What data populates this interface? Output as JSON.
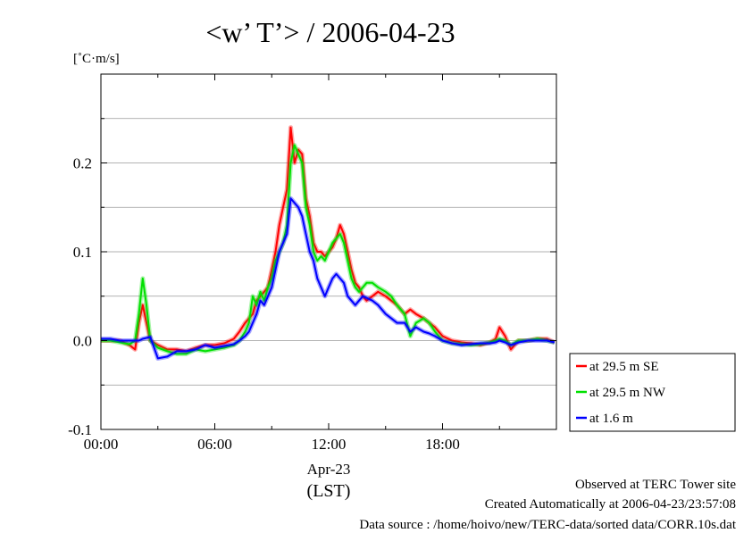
{
  "chart_data": {
    "type": "line",
    "title": "<w’ T’> / 2006-04-23",
    "unit_label": "[˚C·m/s]",
    "xlabel_date": "Apr-23",
    "xlabel": "(LST)",
    "xlim": [
      0,
      24
    ],
    "ylim": [
      -0.1,
      0.3
    ],
    "x_ticks": [
      {
        "value": 0,
        "label": "00:00"
      },
      {
        "value": 6,
        "label": "06:00"
      },
      {
        "value": 12,
        "label": "12:00"
      },
      {
        "value": 18,
        "label": "18:00"
      }
    ],
    "y_ticks": [
      {
        "value": -0.1,
        "label": "-0.1"
      },
      {
        "value": 0.0,
        "label": "0.0"
      },
      {
        "value": 0.1,
        "label": "0.1"
      },
      {
        "value": 0.2,
        "label": "0.2"
      }
    ],
    "grid": true,
    "legend_position": "bottom-right-outside",
    "series": [
      {
        "name": "at 29.5 m SE",
        "color": "#ff0000",
        "x": [
          0.0,
          0.5,
          1.0,
          1.5,
          1.8,
          2.0,
          2.2,
          2.4,
          2.6,
          3.0,
          3.5,
          4.0,
          4.5,
          5.0,
          5.5,
          6.0,
          6.5,
          7.0,
          7.3,
          7.6,
          7.8,
          8.0,
          8.2,
          8.4,
          8.6,
          8.8,
          9.0,
          9.2,
          9.4,
          9.6,
          9.8,
          10.0,
          10.2,
          10.4,
          10.6,
          10.8,
          11.0,
          11.2,
          11.4,
          11.6,
          11.8,
          12.0,
          12.2,
          12.4,
          12.6,
          12.8,
          13.0,
          13.2,
          13.4,
          13.6,
          13.8,
          14.0,
          14.3,
          14.6,
          15.0,
          15.3,
          15.6,
          16.0,
          16.3,
          16.6,
          17.0,
          17.3,
          17.6,
          18.0,
          18.5,
          19.0,
          19.5,
          20.0,
          20.5,
          20.8,
          21.0,
          21.3,
          21.6,
          22.0,
          22.5,
          23.0,
          23.5,
          23.9
        ],
        "values": [
          0.0,
          0.0,
          0.0,
          -0.005,
          -0.01,
          0.02,
          0.04,
          0.02,
          0.0,
          -0.005,
          -0.01,
          -0.01,
          -0.012,
          -0.008,
          -0.005,
          -0.005,
          -0.003,
          0.002,
          0.01,
          0.02,
          0.025,
          0.03,
          0.045,
          0.05,
          0.055,
          0.06,
          0.08,
          0.1,
          0.13,
          0.15,
          0.17,
          0.24,
          0.2,
          0.215,
          0.21,
          0.16,
          0.14,
          0.11,
          0.1,
          0.1,
          0.095,
          0.1,
          0.105,
          0.115,
          0.13,
          0.12,
          0.1,
          0.08,
          0.065,
          0.06,
          0.05,
          0.045,
          0.05,
          0.055,
          0.05,
          0.045,
          0.04,
          0.03,
          0.035,
          0.03,
          0.025,
          0.02,
          0.015,
          0.005,
          0.0,
          -0.002,
          -0.003,
          -0.005,
          -0.002,
          0.002,
          0.015,
          0.005,
          -0.01,
          0.0,
          0.0,
          0.002,
          0.002,
          -0.002
        ]
      },
      {
        "name": "at 29.5 m NW",
        "color": "#00e000",
        "x": [
          0.0,
          0.5,
          1.0,
          1.5,
          1.8,
          2.0,
          2.2,
          2.4,
          2.6,
          3.0,
          3.5,
          4.0,
          4.5,
          5.0,
          5.5,
          6.0,
          6.5,
          7.0,
          7.3,
          7.6,
          7.8,
          8.0,
          8.2,
          8.4,
          8.6,
          8.8,
          9.0,
          9.2,
          9.4,
          9.6,
          9.8,
          10.0,
          10.2,
          10.4,
          10.6,
          10.8,
          11.0,
          11.2,
          11.4,
          11.6,
          11.8,
          12.0,
          12.2,
          12.4,
          12.6,
          12.8,
          13.0,
          13.2,
          13.4,
          13.6,
          13.8,
          14.0,
          14.3,
          14.6,
          15.0,
          15.3,
          15.6,
          16.0,
          16.3,
          16.6,
          17.0,
          17.3,
          17.6,
          18.0,
          18.5,
          19.0,
          19.5,
          20.0,
          20.5,
          20.8,
          21.0,
          21.3,
          21.6,
          22.0,
          22.5,
          23.0,
          23.5,
          23.9
        ],
        "values": [
          0.0,
          0.0,
          -0.002,
          -0.004,
          0.0,
          0.03,
          0.07,
          0.04,
          0.0,
          -0.008,
          -0.012,
          -0.015,
          -0.015,
          -0.01,
          -0.012,
          -0.01,
          -0.008,
          -0.005,
          0.0,
          0.01,
          0.02,
          0.05,
          0.04,
          0.055,
          0.045,
          0.06,
          0.07,
          0.09,
          0.1,
          0.11,
          0.13,
          0.2,
          0.22,
          0.21,
          0.2,
          0.15,
          0.13,
          0.1,
          0.09,
          0.095,
          0.09,
          0.1,
          0.11,
          0.115,
          0.12,
          0.11,
          0.09,
          0.07,
          0.06,
          0.055,
          0.06,
          0.065,
          0.065,
          0.06,
          0.055,
          0.05,
          0.04,
          0.03,
          0.005,
          0.02,
          0.025,
          0.02,
          0.01,
          0.0,
          -0.003,
          -0.004,
          -0.005,
          -0.004,
          -0.002,
          0.0,
          0.002,
          0.0,
          -0.005,
          0.0,
          0.0,
          0.002,
          0.0,
          -0.002
        ]
      },
      {
        "name": "at 1.6 m",
        "color": "#0000ff",
        "x": [
          0.0,
          0.5,
          1.0,
          1.5,
          1.8,
          2.0,
          2.2,
          2.4,
          2.6,
          3.0,
          3.5,
          4.0,
          4.5,
          5.0,
          5.5,
          6.0,
          6.5,
          7.0,
          7.3,
          7.6,
          7.8,
          8.0,
          8.2,
          8.4,
          8.6,
          8.8,
          9.0,
          9.2,
          9.4,
          9.6,
          9.8,
          10.0,
          10.2,
          10.4,
          10.6,
          10.8,
          11.0,
          11.2,
          11.4,
          11.6,
          11.8,
          12.0,
          12.2,
          12.4,
          12.6,
          12.8,
          13.0,
          13.2,
          13.4,
          13.6,
          13.8,
          14.0,
          14.3,
          14.6,
          15.0,
          15.3,
          15.6,
          16.0,
          16.3,
          16.6,
          17.0,
          17.3,
          17.6,
          18.0,
          18.5,
          19.0,
          19.5,
          20.0,
          20.5,
          20.8,
          21.0,
          21.3,
          21.6,
          22.0,
          22.5,
          23.0,
          23.5,
          23.9
        ],
        "values": [
          0.002,
          0.002,
          0.0,
          0.0,
          0.0,
          0.0,
          0.002,
          0.003,
          0.004,
          -0.02,
          -0.018,
          -0.012,
          -0.012,
          -0.01,
          -0.005,
          -0.008,
          -0.006,
          -0.004,
          0.0,
          0.005,
          0.01,
          0.02,
          0.03,
          0.045,
          0.04,
          0.05,
          0.06,
          0.08,
          0.1,
          0.11,
          0.12,
          0.16,
          0.155,
          0.15,
          0.14,
          0.12,
          0.1,
          0.09,
          0.07,
          0.06,
          0.05,
          0.06,
          0.07,
          0.075,
          0.07,
          0.065,
          0.05,
          0.045,
          0.04,
          0.045,
          0.05,
          0.048,
          0.045,
          0.04,
          0.03,
          0.025,
          0.02,
          0.02,
          0.01,
          0.015,
          0.01,
          0.008,
          0.005,
          0.0,
          -0.003,
          -0.005,
          -0.004,
          -0.003,
          -0.003,
          -0.002,
          0.0,
          -0.002,
          -0.005,
          -0.002,
          0.0,
          0.0,
          0.0,
          -0.002
        ]
      }
    ]
  },
  "footer": {
    "line1": "Observed at TERC Tower site",
    "line2": "Created Automatically at 2006-04-23/23:57:08",
    "line3": "Data source : /home/hoivo/new/TERC-data/sorted  data/CORR.10s.dat"
  }
}
